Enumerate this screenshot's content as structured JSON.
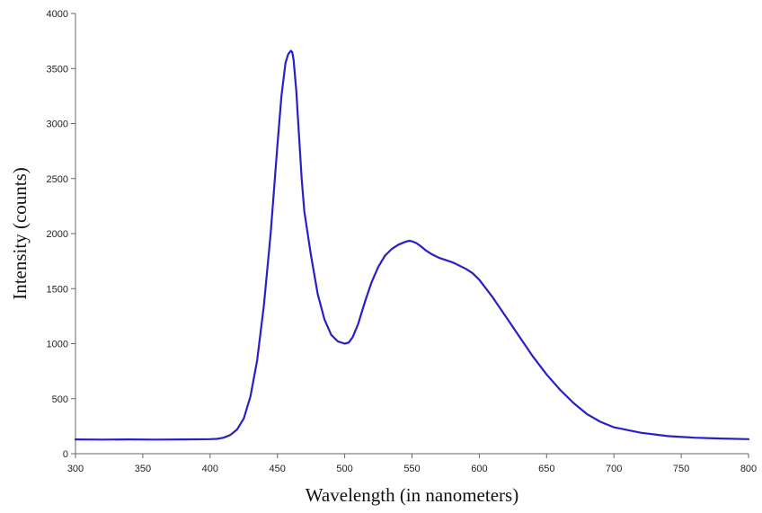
{
  "chart_data": {
    "type": "line",
    "title": "",
    "xlabel": "Wavelength (in nanometers)",
    "ylabel": "Intensity (counts)",
    "xlim": [
      300,
      800
    ],
    "ylim": [
      0,
      4000
    ],
    "x_ticks": [
      300,
      350,
      400,
      450,
      500,
      550,
      600,
      650,
      700,
      750,
      800
    ],
    "y_ticks": [
      0,
      500,
      1000,
      1500,
      2000,
      2500,
      3000,
      3500,
      4000
    ],
    "grid": false,
    "legend": "none",
    "series": [
      {
        "color": "#2a1fc7",
        "x": [
          300,
          320,
          340,
          360,
          380,
          400,
          405,
          410,
          415,
          420,
          425,
          430,
          435,
          440,
          445,
          450,
          453,
          456,
          458,
          460,
          461,
          462,
          464,
          466,
          468,
          470,
          475,
          480,
          485,
          490,
          495,
          500,
          503,
          506,
          510,
          515,
          520,
          525,
          530,
          535,
          540,
          545,
          548,
          550,
          553,
          556,
          560,
          565,
          570,
          575,
          580,
          585,
          590,
          595,
          600,
          610,
          620,
          630,
          640,
          650,
          660,
          670,
          680,
          690,
          700,
          720,
          740,
          760,
          780,
          800
        ],
        "y": [
          130,
          128,
          130,
          128,
          130,
          132,
          135,
          145,
          170,
          220,
          320,
          520,
          850,
          1350,
          2000,
          2800,
          3250,
          3550,
          3630,
          3660,
          3650,
          3580,
          3300,
          2900,
          2500,
          2200,
          1800,
          1450,
          1220,
          1080,
          1020,
          1000,
          1010,
          1060,
          1180,
          1380,
          1560,
          1700,
          1800,
          1860,
          1900,
          1925,
          1935,
          1930,
          1915,
          1890,
          1850,
          1810,
          1780,
          1760,
          1740,
          1710,
          1680,
          1640,
          1580,
          1420,
          1240,
          1060,
          880,
          720,
          580,
          460,
          360,
          290,
          240,
          190,
          160,
          145,
          138,
          132
        ]
      }
    ]
  }
}
